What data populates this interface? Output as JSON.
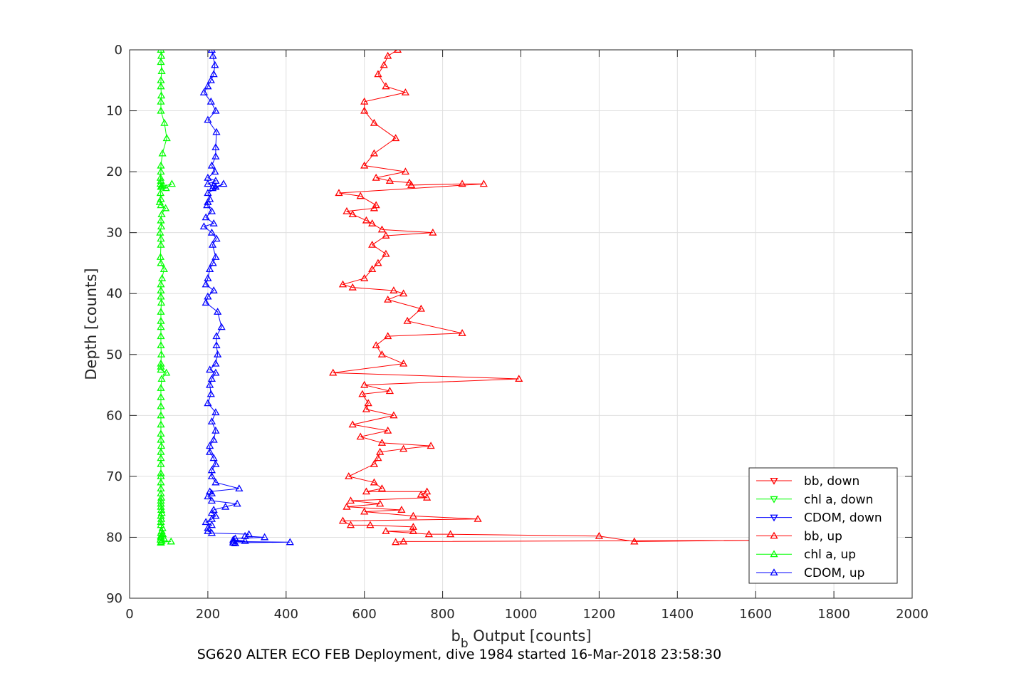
{
  "chart_data": {
    "type": "line",
    "title": "",
    "xlabel_main": "b",
    "xlabel_sub": "b",
    "xlabel_rest": " Output [counts]",
    "ylabel": "Depth [counts]",
    "caption": "SG620 ALTER ECO FEB Deployment, dive 1984 started 16-Mar-2018 23:58:30",
    "xlim": [
      0,
      2000
    ],
    "ylim": [
      0,
      90
    ],
    "y_reversed": true,
    "grid": true,
    "legend_position": "bottom-right",
    "x_ticks": [
      "0",
      "200",
      "400",
      "600",
      "800",
      "1000",
      "1200",
      "1400",
      "1600",
      "1800",
      "2000"
    ],
    "y_ticks": [
      "0",
      "10",
      "20",
      "30",
      "40",
      "50",
      "60",
      "70",
      "80",
      "90"
    ],
    "series": [
      {
        "name": "bb, down",
        "color": "#ff0000",
        "marker": "down-triangle",
        "x": [],
        "y": []
      },
      {
        "name": "chl a, down",
        "color": "#00ff00",
        "marker": "down-triangle",
        "x": [],
        "y": []
      },
      {
        "name": "CDOM, down",
        "color": "#0000ff",
        "marker": "down-triangle",
        "x": [],
        "y": []
      },
      {
        "name": "bb, up",
        "color": "#ff0000",
        "marker": "up-triangle",
        "x": [
          685,
          660,
          650,
          635,
          655,
          705,
          600,
          600,
          625,
          680,
          625,
          600,
          705,
          630,
          665,
          715,
          720,
          850,
          905,
          535,
          590,
          630,
          625,
          555,
          570,
          605,
          620,
          645,
          775,
          655,
          620,
          655,
          635,
          620,
          600,
          545,
          570,
          675,
          700,
          660,
          745,
          710,
          850,
          660,
          630,
          645,
          700,
          520,
          995,
          600,
          665,
          595,
          610,
          605,
          675,
          570,
          660,
          590,
          645,
          770,
          700,
          640,
          635,
          625,
          560,
          625,
          645,
          605,
          760,
          745,
          760,
          565,
          640,
          555,
          695,
          600,
          725,
          890,
          545,
          565,
          615,
          725,
          725,
          655,
          765,
          820,
          1200,
          1290,
          1600,
          700,
          680
        ],
        "y": [
          0,
          1,
          2.5,
          4,
          6,
          7,
          8.5,
          10,
          12,
          14.5,
          17,
          19,
          20,
          21,
          21.5,
          21.8,
          22.2,
          22,
          22,
          23.5,
          24,
          25.5,
          26,
          26.5,
          27,
          28,
          28.5,
          29.5,
          30,
          30.5,
          32,
          33.5,
          35,
          36,
          37.5,
          38.5,
          39,
          39.5,
          40,
          41,
          42.5,
          44.5,
          46.5,
          47,
          48.5,
          50,
          51.5,
          53,
          54,
          55,
          56,
          56.5,
          58,
          59,
          60,
          61.5,
          62.5,
          63.5,
          64.5,
          65,
          65.5,
          66,
          67,
          68,
          70,
          71,
          72,
          72.5,
          72.5,
          73,
          73.5,
          74,
          74.5,
          75,
          75.5,
          75.8,
          76.5,
          77,
          77.3,
          78,
          78,
          78.3,
          79,
          79,
          79.5,
          79.5,
          79.8,
          80.7,
          80.5,
          80.7,
          80.8
        ]
      },
      {
        "name": "chl a, up",
        "color": "#00ff00",
        "marker": "up-triangle",
        "x": [
          80,
          81,
          80,
          82,
          80,
          80,
          81,
          80,
          80,
          89,
          95,
          84,
          80,
          80,
          79,
          80,
          79,
          85,
          80,
          93,
          108,
          81,
          79,
          80,
          77,
          80,
          92,
          82,
          80,
          81,
          78,
          80,
          80,
          79,
          80,
          88,
          83,
          80,
          80,
          80,
          81,
          80,
          80,
          80,
          80,
          80,
          81,
          80,
          80,
          80,
          94,
          82,
          80,
          80,
          80,
          80,
          80,
          80,
          80,
          81,
          80,
          80,
          80,
          80,
          80,
          80,
          80,
          80,
          81,
          80,
          80,
          80,
          81,
          82,
          80,
          81,
          80,
          80,
          84,
          82,
          80,
          85,
          80,
          80,
          88,
          79,
          82,
          106,
          80,
          80
        ],
        "y": [
          0,
          1,
          2,
          3.5,
          5,
          6,
          7.5,
          8.5,
          10,
          12,
          14.5,
          17,
          19,
          20,
          21,
          21.5,
          22,
          22.3,
          22.5,
          22.7,
          22,
          22.5,
          23.5,
          24.5,
          25,
          25.5,
          26,
          27,
          28,
          29,
          30,
          31,
          32,
          34,
          35,
          36,
          37.5,
          38.5,
          39.5,
          40.5,
          41.5,
          43,
          44.5,
          45.5,
          47,
          48.5,
          50,
          51.5,
          52,
          52.5,
          53,
          54,
          55.5,
          57,
          58.5,
          60,
          61.5,
          63,
          64,
          65,
          66,
          67,
          68,
          69.5,
          70,
          71,
          72,
          72.8,
          73.5,
          74,
          74.5,
          75,
          75.5,
          76,
          76.5,
          77,
          77.5,
          78,
          78.5,
          79,
          79.3,
          79.5,
          79.8,
          80,
          80.2,
          80.4,
          80.6,
          80.7,
          80.8,
          80.9
        ]
      },
      {
        "name": "CDOM, up",
        "color": "#0000ff",
        "marker": "up-triangle",
        "x": [
          210,
          213,
          218,
          215,
          208,
          200,
          190,
          208,
          220,
          200,
          222,
          220,
          220,
          210,
          218,
          200,
          220,
          200,
          215,
          220,
          212,
          240,
          200,
          205,
          200,
          198,
          210,
          195,
          215,
          190,
          210,
          222,
          212,
          220,
          213,
          205,
          200,
          195,
          215,
          200,
          195,
          225,
          235,
          222,
          222,
          225,
          220,
          205,
          220,
          210,
          205,
          208,
          200,
          220,
          210,
          220,
          215,
          205,
          205,
          215,
          220,
          210,
          210,
          220,
          280,
          205,
          210,
          200,
          210,
          275,
          245,
          215,
          210,
          220,
          210,
          195,
          210,
          200,
          200,
          210,
          305,
          295,
          345,
          270,
          265,
          295,
          265,
          410,
          265,
          270
        ],
        "y": [
          0,
          1,
          2.5,
          4,
          5,
          6,
          7,
          8.5,
          10,
          11.5,
          13.5,
          16,
          17.5,
          19,
          20,
          21,
          21.5,
          22,
          22.3,
          22.5,
          22.7,
          22,
          23.5,
          24.5,
          25,
          25.5,
          26.5,
          27.5,
          28.5,
          29,
          30,
          31,
          32,
          34,
          35,
          36,
          37.5,
          38.5,
          39.5,
          40.5,
          41.5,
          43,
          45.5,
          47,
          48.5,
          50,
          51.5,
          52.5,
          53,
          54,
          55,
          56.5,
          58,
          59.5,
          61,
          62.5,
          64,
          65,
          66,
          67,
          68,
          69,
          70,
          71,
          72,
          72.5,
          72.8,
          73.3,
          74,
          74.5,
          75,
          75.5,
          76,
          76.5,
          77,
          77.5,
          78,
          78.5,
          79,
          79.3,
          79.5,
          79.8,
          80,
          80.2,
          80.4,
          80.6,
          80.7,
          80.8,
          80.9,
          81
        ]
      }
    ]
  }
}
